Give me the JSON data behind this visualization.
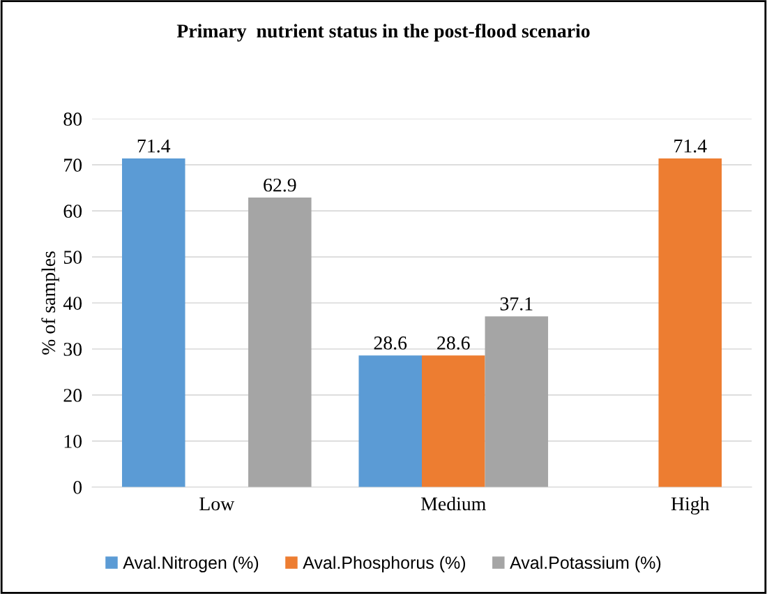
{
  "chart_data": {
    "type": "bar",
    "title": "Primary  nutrient status in the post-flood scenario",
    "ylabel": "% of samples",
    "categories": [
      "Low",
      "Medium",
      "High"
    ],
    "series": [
      {
        "name": "Aval.Nitrogen (%)",
        "color": "#5b9bd5",
        "values": [
          71.4,
          28.6,
          null
        ]
      },
      {
        "name": "Aval.Phosphorus (%)",
        "color": "#ed7d31",
        "values": [
          null,
          28.6,
          71.4
        ]
      },
      {
        "name": "Aval.Potassium (%)",
        "color": "#a5a5a5",
        "values": [
          62.9,
          37.1,
          null
        ]
      }
    ],
    "ylim": [
      0,
      80
    ],
    "yticks": [
      0,
      10,
      20,
      30,
      40,
      50,
      60,
      70,
      80
    ],
    "grid": "y",
    "legend": "bottom",
    "data_labels": true
  }
}
